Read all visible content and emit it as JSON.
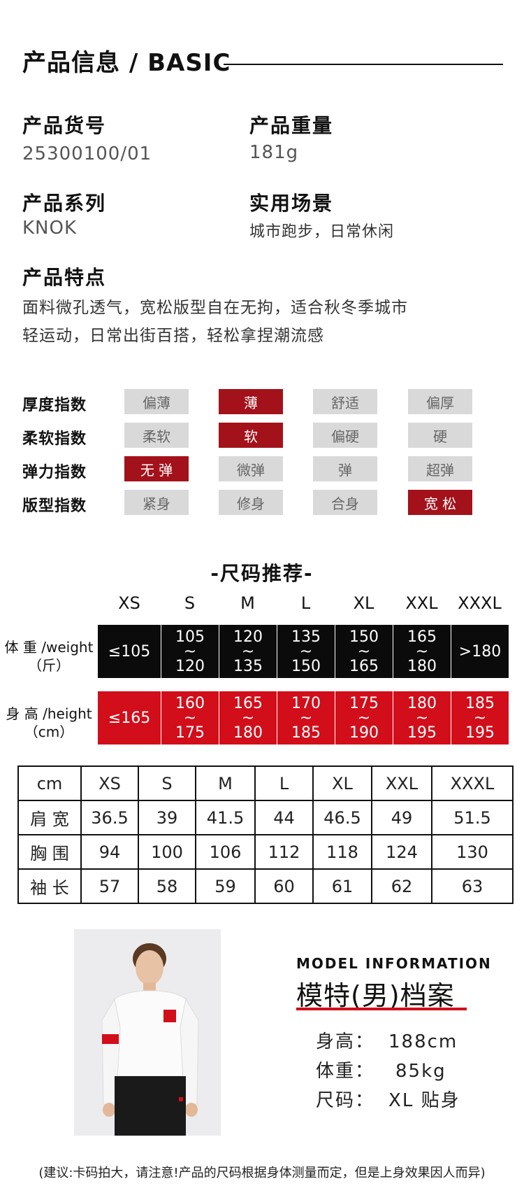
{
  "header": {
    "title": "产品信息 / BASIC"
  },
  "fields": [
    {
      "label": "产品货号",
      "value": "25300100/01"
    },
    {
      "label": "产品重量",
      "value": "181g"
    },
    {
      "label": "产品系列",
      "value": "KNOK"
    },
    {
      "label": "实用场景",
      "value": "城市跑步，日常休闲"
    }
  ],
  "features": {
    "label": "产品特点",
    "lines": [
      "面料微孔透气，宽松版型自在无拘，适合秋冬季城市",
      "轻运动，日常出街百搭，轻松拿捏潮流感"
    ]
  },
  "indices": [
    {
      "label": "厚度指数",
      "options": [
        "偏薄",
        "薄",
        "舒适",
        "偏厚"
      ],
      "selected": 1
    },
    {
      "label": "柔软指数",
      "options": [
        "柔软",
        "软",
        "偏硬",
        "硬"
      ],
      "selected": 1
    },
    {
      "label": "弹力指数",
      "options": [
        "无 弹",
        "微弹",
        "弹",
        "超弹"
      ],
      "selected": 0
    },
    {
      "label": "版型指数",
      "options": [
        "紧身",
        "修身",
        "合身",
        "宽 松"
      ],
      "selected": 3
    }
  ],
  "size_recommend": {
    "title": "-尺码推荐-",
    "sizes": [
      "XS",
      "S",
      "M",
      "L",
      "XL",
      "XXL",
      "XXXL"
    ],
    "weight": {
      "label": "体 重 /weight",
      "unit": "（斤）",
      "cells": [
        [
          "≤105"
        ],
        [
          "105",
          "~",
          "120"
        ],
        [
          "120",
          "~",
          "135"
        ],
        [
          "135",
          "~",
          "150"
        ],
        [
          "150",
          "~",
          "165"
        ],
        [
          "165",
          "~",
          "180"
        ],
        [
          ">180"
        ]
      ]
    },
    "height": {
      "label": "身 高 /height",
      "unit": "（cm）",
      "cells": [
        [
          "≤165"
        ],
        [
          "160",
          "~",
          "175"
        ],
        [
          "165",
          "~",
          "180"
        ],
        [
          "170",
          "~",
          "185"
        ],
        [
          "175",
          "~",
          "190"
        ],
        [
          "180",
          "~",
          "195"
        ],
        [
          "185",
          "~",
          "195"
        ]
      ]
    }
  },
  "measurements": {
    "headers": [
      "cm",
      "XS",
      "S",
      "M",
      "L",
      "XL",
      "XXL",
      "XXXL"
    ],
    "rows": [
      [
        "肩 宽",
        "36.5",
        "39",
        "41.5",
        "44",
        "46.5",
        "49",
        "51.5"
      ],
      [
        "胸 围",
        "94",
        "100",
        "106",
        "112",
        "118",
        "124",
        "130"
      ],
      [
        "袖 长",
        "57",
        "58",
        "59",
        "60",
        "61",
        "62",
        "63"
      ]
    ]
  },
  "model": {
    "en_title": "MODEL INFORMATION",
    "zh_title": "模特(男)档案",
    "stats": [
      {
        "label": "身高：",
        "value": "188cm"
      },
      {
        "label": "体重：",
        "value": "85kg"
      },
      {
        "label": "尺码：",
        "value": "XL 贴身"
      }
    ]
  },
  "footer": {
    "note": "(建议:卡码拍大，请注意!产品的尺码根据身体测量而定，但是上身效果因人而异)"
  },
  "colors": {
    "accent_dark_red": "#a3121a",
    "accent_red": "#d10e1a",
    "black": "#0b0b0b",
    "inactive_gray": "#d9d9d9"
  }
}
